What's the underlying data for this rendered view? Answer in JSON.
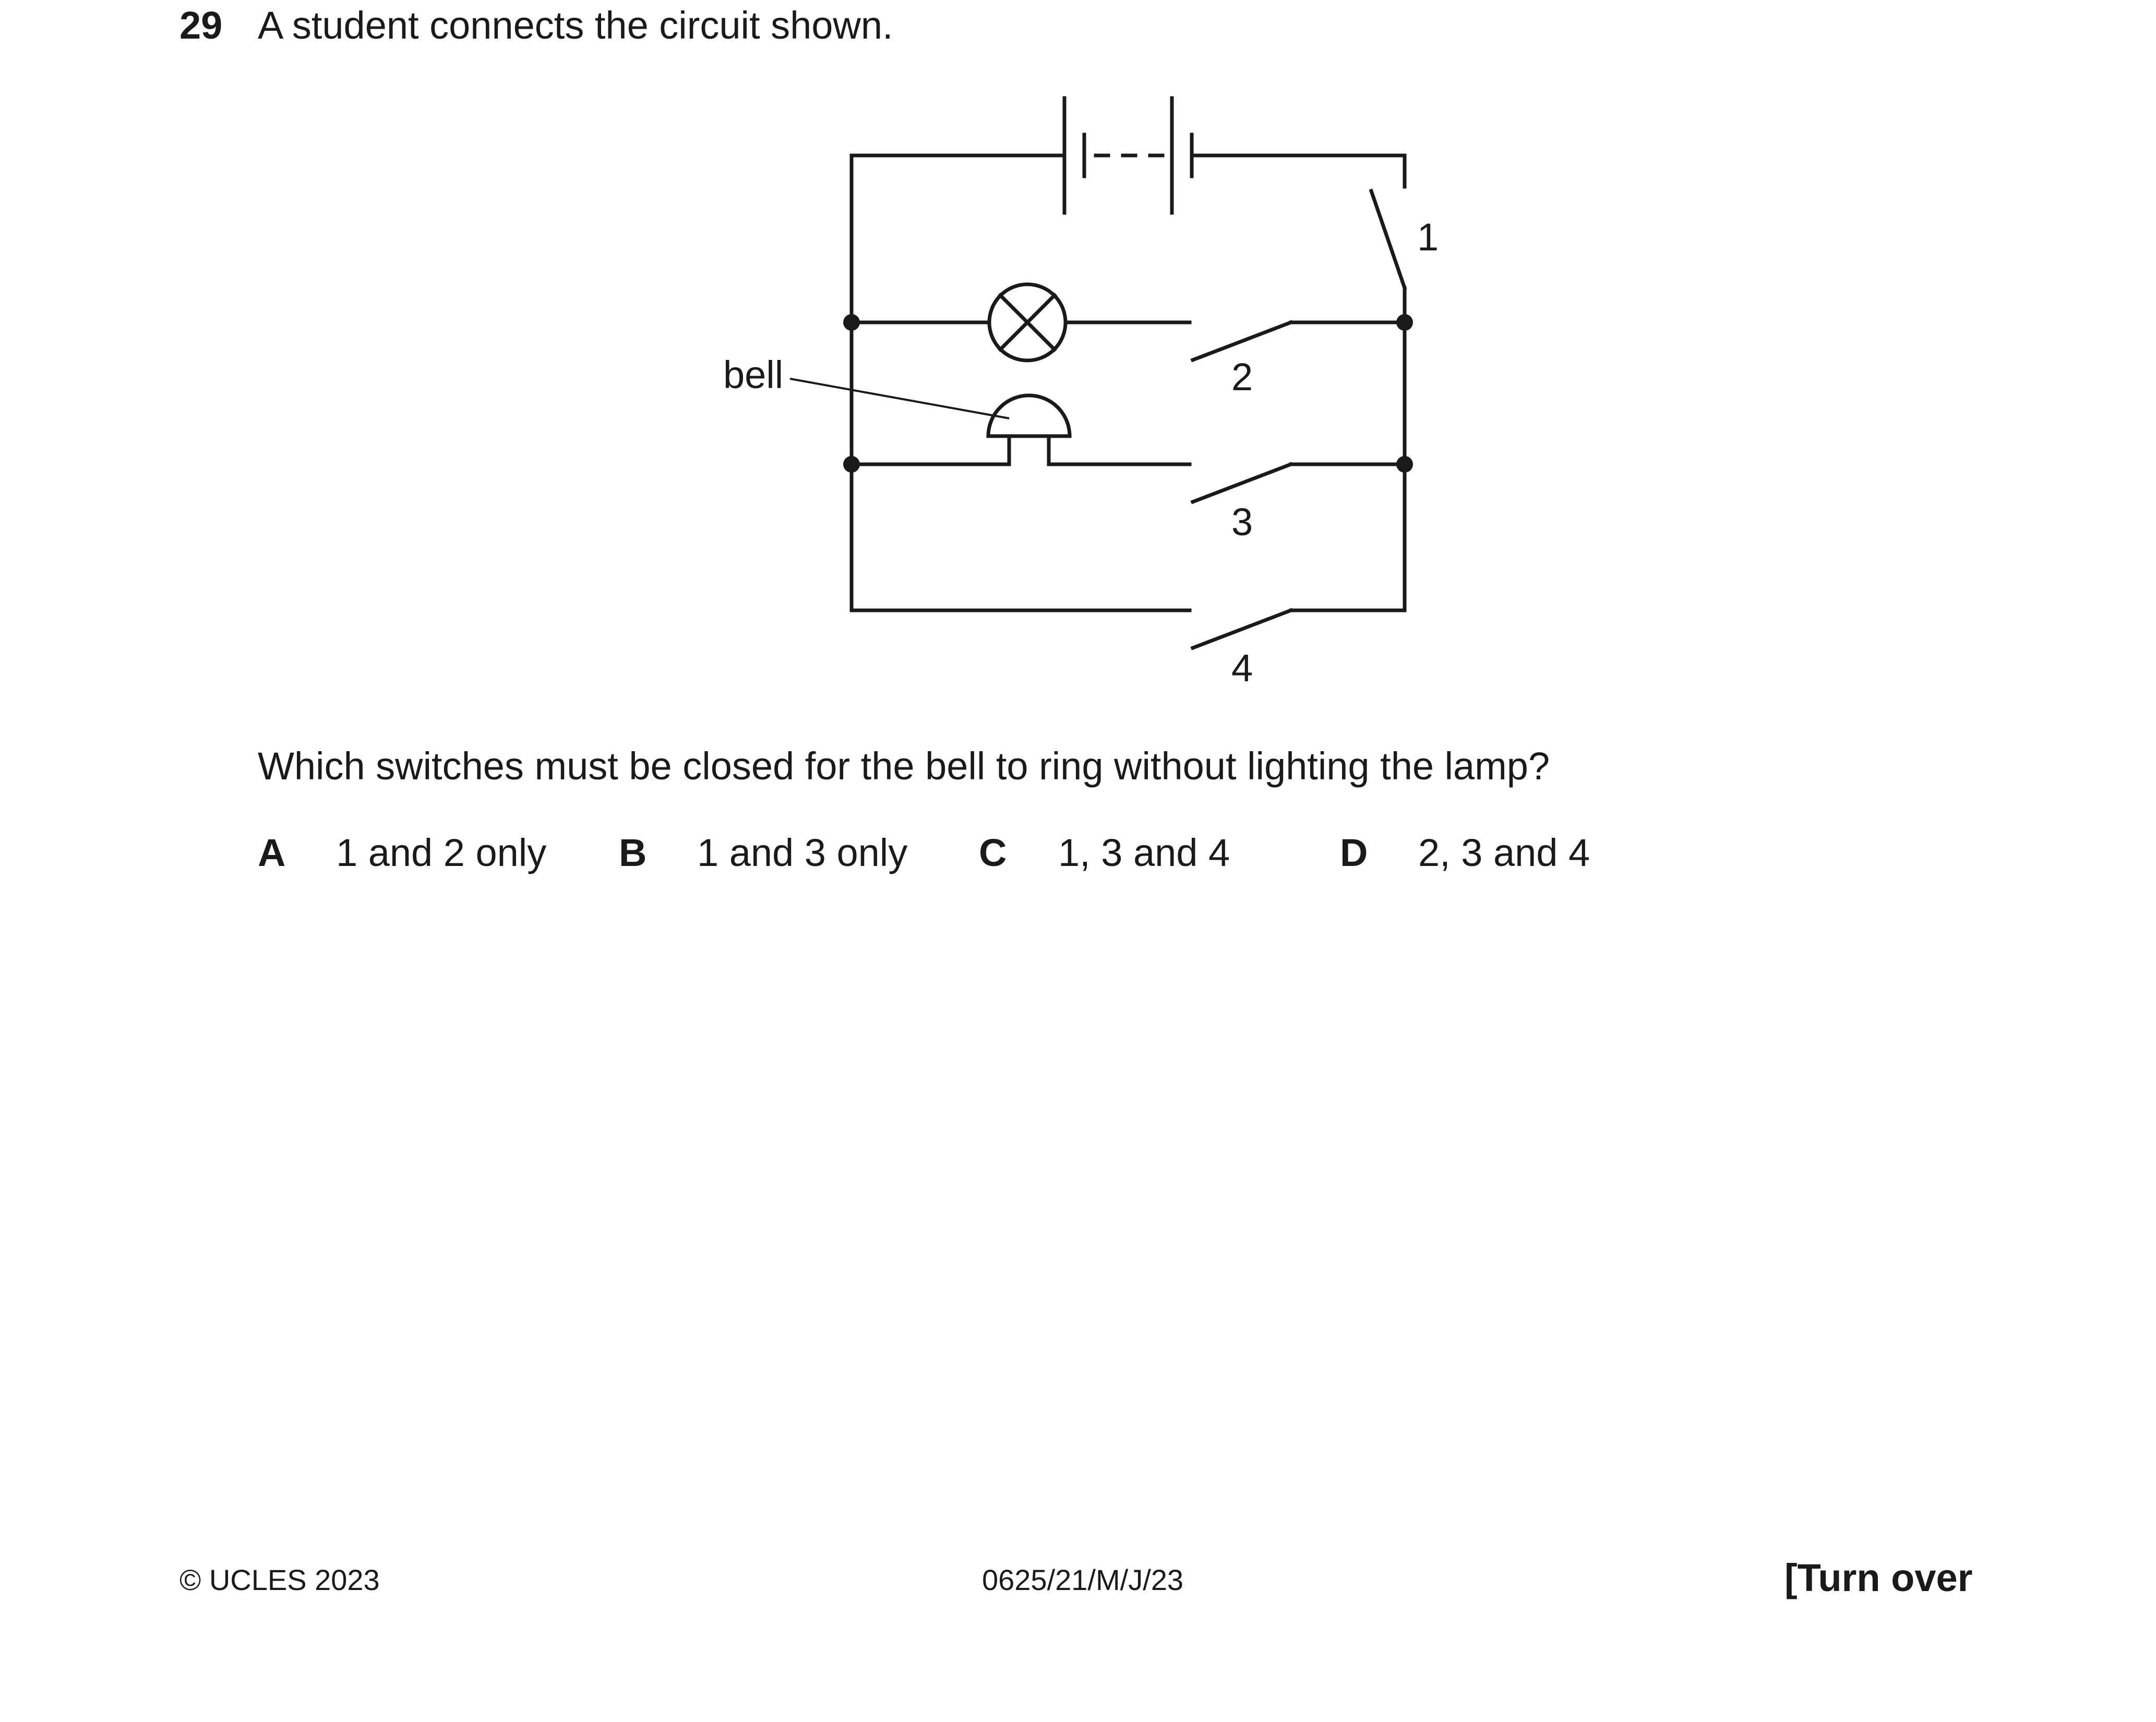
{
  "question": {
    "number": "29",
    "text": "A student connects the circuit shown."
  },
  "diagram": {
    "bell_label": "bell",
    "switch_labels": [
      "1",
      "2",
      "3",
      "4"
    ]
  },
  "prompt": "Which switches must be closed for the bell to ring without lighting the lamp?",
  "options": [
    {
      "letter": "A",
      "text": "1 and 2 only"
    },
    {
      "letter": "B",
      "text": "1 and 3 only"
    },
    {
      "letter": "C",
      "text": "1, 3 and 4"
    },
    {
      "letter": "D",
      "text": "2, 3 and 4"
    }
  ],
  "footer": {
    "copyright": "© UCLES 2023",
    "code": "0625/21/M/J/23",
    "turn_over": "[Turn over"
  }
}
